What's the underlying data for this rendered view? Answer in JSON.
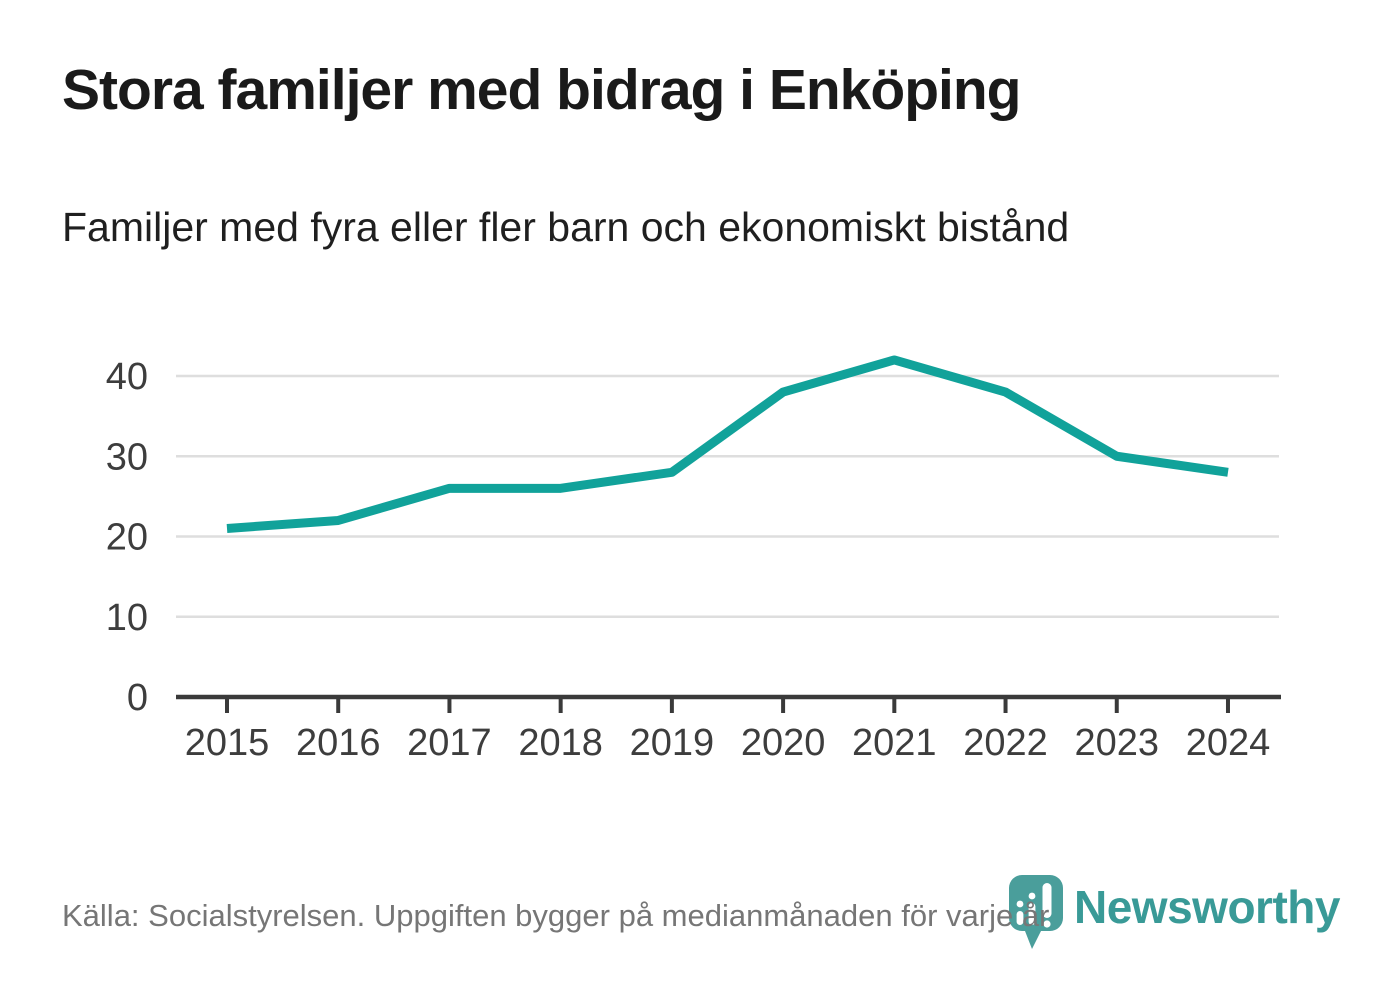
{
  "title": "Stora familjer med bidrag i Enköping",
  "subtitle": "Familjer med fyra eller fler barn och ekonomiskt bistånd",
  "footer": {
    "source_text": "Källa: Socialstyrelsen. Uppgiften bygger på medianmånaden för varje år"
  },
  "logo": {
    "brand_name": "Newsworthy",
    "icon": "newsworthy-bar-chart-pin-icon",
    "text_color": "#399a97",
    "icon_color": "#4a9e9b"
  },
  "colors": {
    "line": "#11a29a",
    "grid": "#dedede",
    "axis": "#3a3a3a",
    "tick_label": "#3d3d3d",
    "title_text": "#1a1a1a",
    "source_text": "#767676",
    "background": "#ffffff"
  },
  "chart_data": {
    "type": "line",
    "title": "Stora familjer med bidrag i Enköping",
    "subtitle": "Familjer med fyra eller fler barn och ekonomiskt bistånd",
    "x": [
      2015,
      2016,
      2017,
      2018,
      2019,
      2020,
      2021,
      2022,
      2023,
      2024
    ],
    "series": [
      {
        "name": "Familjer med fyra eller fler barn och ekonomiskt bistånd",
        "values": [
          21,
          22,
          26,
          26,
          28,
          38,
          42,
          38,
          30,
          28
        ]
      }
    ],
    "xlabel": "",
    "ylabel": "",
    "ylim": [
      0,
      45
    ],
    "yticks": [
      0,
      10,
      20,
      30,
      40
    ],
    "grid": true,
    "legend_position": "none",
    "line_color": "#11a29a"
  }
}
